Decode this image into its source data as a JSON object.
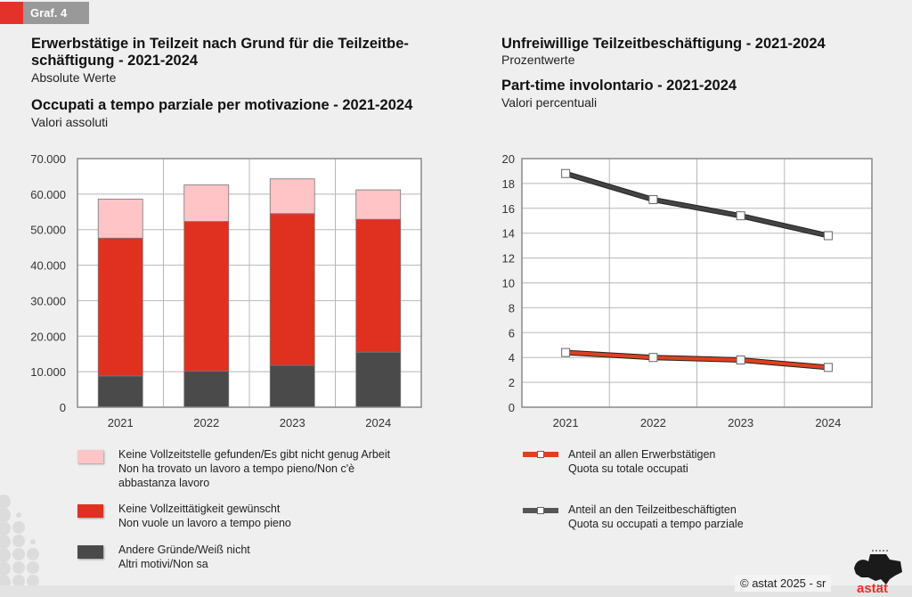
{
  "header": {
    "graph_label": "Graf. 4"
  },
  "left": {
    "title_de_line1": "Erwerbstätige in Teilzeit nach Grund für die Teilzeitbe-",
    "title_de_line2": "schäftigung - 2021-2024",
    "subtitle_de": "Absolute Werte",
    "title_it": "Occupati a tempo parziale per motivazione - 2021-2024",
    "subtitle_it": "Valori assoluti",
    "legend": [
      {
        "line1": "Keine Vollzeitstelle gefunden/Es gibt nicht genug Arbeit",
        "line2": "Non ha trovato un lavoro a tempo pieno/Non c'è",
        "line3": "abbastanza lavoro"
      },
      {
        "line1": "Keine Vollzeittätigkeit gewünscht",
        "line2": "Non vuole un lavoro a tempo pieno"
      },
      {
        "line1": "Andere Gründe/Weiß nicht",
        "line2": "Altri motivi/Non sa"
      }
    ]
  },
  "right": {
    "title_de": "Unfreiwillige Teilzeitbeschäftigung - 2021-2024",
    "subtitle_de": "Prozentwerte",
    "title_it": "Part-time involontario - 2021-2024",
    "subtitle_it": "Valori percentuali",
    "legend": [
      {
        "line1": "Anteil an allen Erwerbstätigen",
        "line2": "Quota su totale occupati"
      },
      {
        "line1": "Anteil an den Teilzeitbeschäftigten",
        "line2": "Quota su occupati a tempo parziale"
      }
    ]
  },
  "footer": {
    "copyright": "© astat 2025 - sr",
    "logo_text": "astat"
  },
  "colors": {
    "pink": "#ffc4c6",
    "red": "#e03020",
    "dark": "#4a4a4a",
    "accent": "#e2322a",
    "line_red": "#e0401e",
    "line_dark": "#444444"
  },
  "chart_data": [
    {
      "type": "bar",
      "stacked": true,
      "title": "Erwerbstätige in Teilzeit nach Grund für die Teilzeitbeschäftigung - 2021-2024 / Occupati a tempo parziale per motivazione - 2021-2024",
      "xlabel": "",
      "ylabel": "",
      "categories": [
        "2021",
        "2022",
        "2023",
        "2024"
      ],
      "series": [
        {
          "name": "Andere Gründe/Weiß nicht - Altri motivi/Non sa",
          "values": [
            8800,
            10200,
            11800,
            15500
          ]
        },
        {
          "name": "Keine Vollzeittätigkeit gewünscht - Non vuole un lavoro a tempo pieno",
          "values": [
            38800,
            42100,
            42700,
            37400
          ]
        },
        {
          "name": "Keine Vollzeitstelle gefunden/Es gibt nicht genug Arbeit - Non ha trovato un lavoro a tempo pieno/Non c'è abbastanza lavoro",
          "values": [
            11000,
            10300,
            9800,
            8300
          ]
        }
      ],
      "ylim": [
        0,
        70000
      ],
      "yticks": [
        0,
        10000,
        20000,
        30000,
        40000,
        50000,
        60000,
        70000
      ],
      "ytick_labels": [
        "0",
        "10.000",
        "20.000",
        "30.000",
        "40.000",
        "50.000",
        "60.000",
        "70.000"
      ],
      "grid": true,
      "legend_position": "bottom"
    },
    {
      "type": "line",
      "title": "Unfreiwillige Teilzeitbeschäftigung - 2021-2024 / Part-time involontario - 2021-2024",
      "xlabel": "",
      "ylabel": "",
      "categories": [
        "2021",
        "2022",
        "2023",
        "2024"
      ],
      "series": [
        {
          "name": "Anteil an allen Erwerbstätigen - Quota su totale occupati",
          "values": [
            4.4,
            4.0,
            3.8,
            3.2
          ]
        },
        {
          "name": "Anteil an den Teilzeitbeschäftigten - Quota su occupati a tempo parziale",
          "values": [
            18.8,
            16.7,
            15.4,
            13.8
          ]
        }
      ],
      "ylim": [
        0,
        20
      ],
      "yticks": [
        0,
        2,
        4,
        6,
        8,
        10,
        12,
        14,
        16,
        18,
        20
      ],
      "ytick_labels": [
        "0",
        "2",
        "4",
        "6",
        "8",
        "10",
        "12",
        "14",
        "16",
        "18",
        "20"
      ],
      "grid": true,
      "legend_position": "bottom"
    }
  ]
}
